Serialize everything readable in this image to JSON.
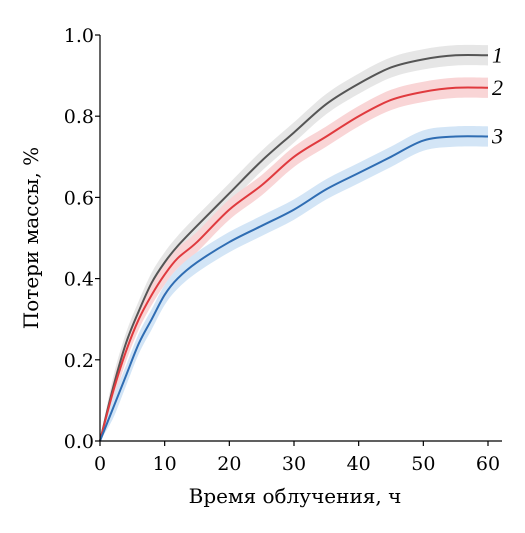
{
  "chart_data": {
    "type": "line",
    "xlabel": "Время облучения, ч",
    "ylabel": "Потери массы, %",
    "xlim": [
      0,
      60
    ],
    "ylim": [
      0,
      1.0
    ],
    "xticks": [
      "0",
      "10",
      "20",
      "30",
      "40",
      "50",
      "60"
    ],
    "yticks": [
      "0.0",
      "0.2",
      "0.4",
      "0.6",
      "0.8",
      "1.0"
    ],
    "grid": false,
    "x": [
      0,
      2,
      4,
      6,
      8,
      10,
      12,
      15,
      20,
      25,
      30,
      35,
      40,
      45,
      50,
      55,
      60
    ],
    "series": [
      {
        "name": "1",
        "color": "#555555",
        "band_color": "#e6e6e6",
        "values": [
          0.0,
          0.13,
          0.24,
          0.32,
          0.39,
          0.44,
          0.48,
          0.53,
          0.61,
          0.69,
          0.76,
          0.83,
          0.88,
          0.92,
          0.94,
          0.95,
          0.95
        ],
        "band": 0.025
      },
      {
        "name": "2",
        "color": "#e03a3e",
        "band_color": "#f9d5d6",
        "values": [
          0.0,
          0.12,
          0.22,
          0.3,
          0.36,
          0.41,
          0.45,
          0.49,
          0.57,
          0.63,
          0.7,
          0.75,
          0.8,
          0.84,
          0.86,
          0.87,
          0.87
        ],
        "band": 0.025
      },
      {
        "name": "3",
        "color": "#2f6db3",
        "band_color": "#d3e5f6",
        "values": [
          0.0,
          0.08,
          0.16,
          0.24,
          0.3,
          0.36,
          0.4,
          0.44,
          0.49,
          0.53,
          0.57,
          0.62,
          0.66,
          0.7,
          0.74,
          0.75,
          0.75
        ],
        "band": 0.025
      }
    ]
  }
}
